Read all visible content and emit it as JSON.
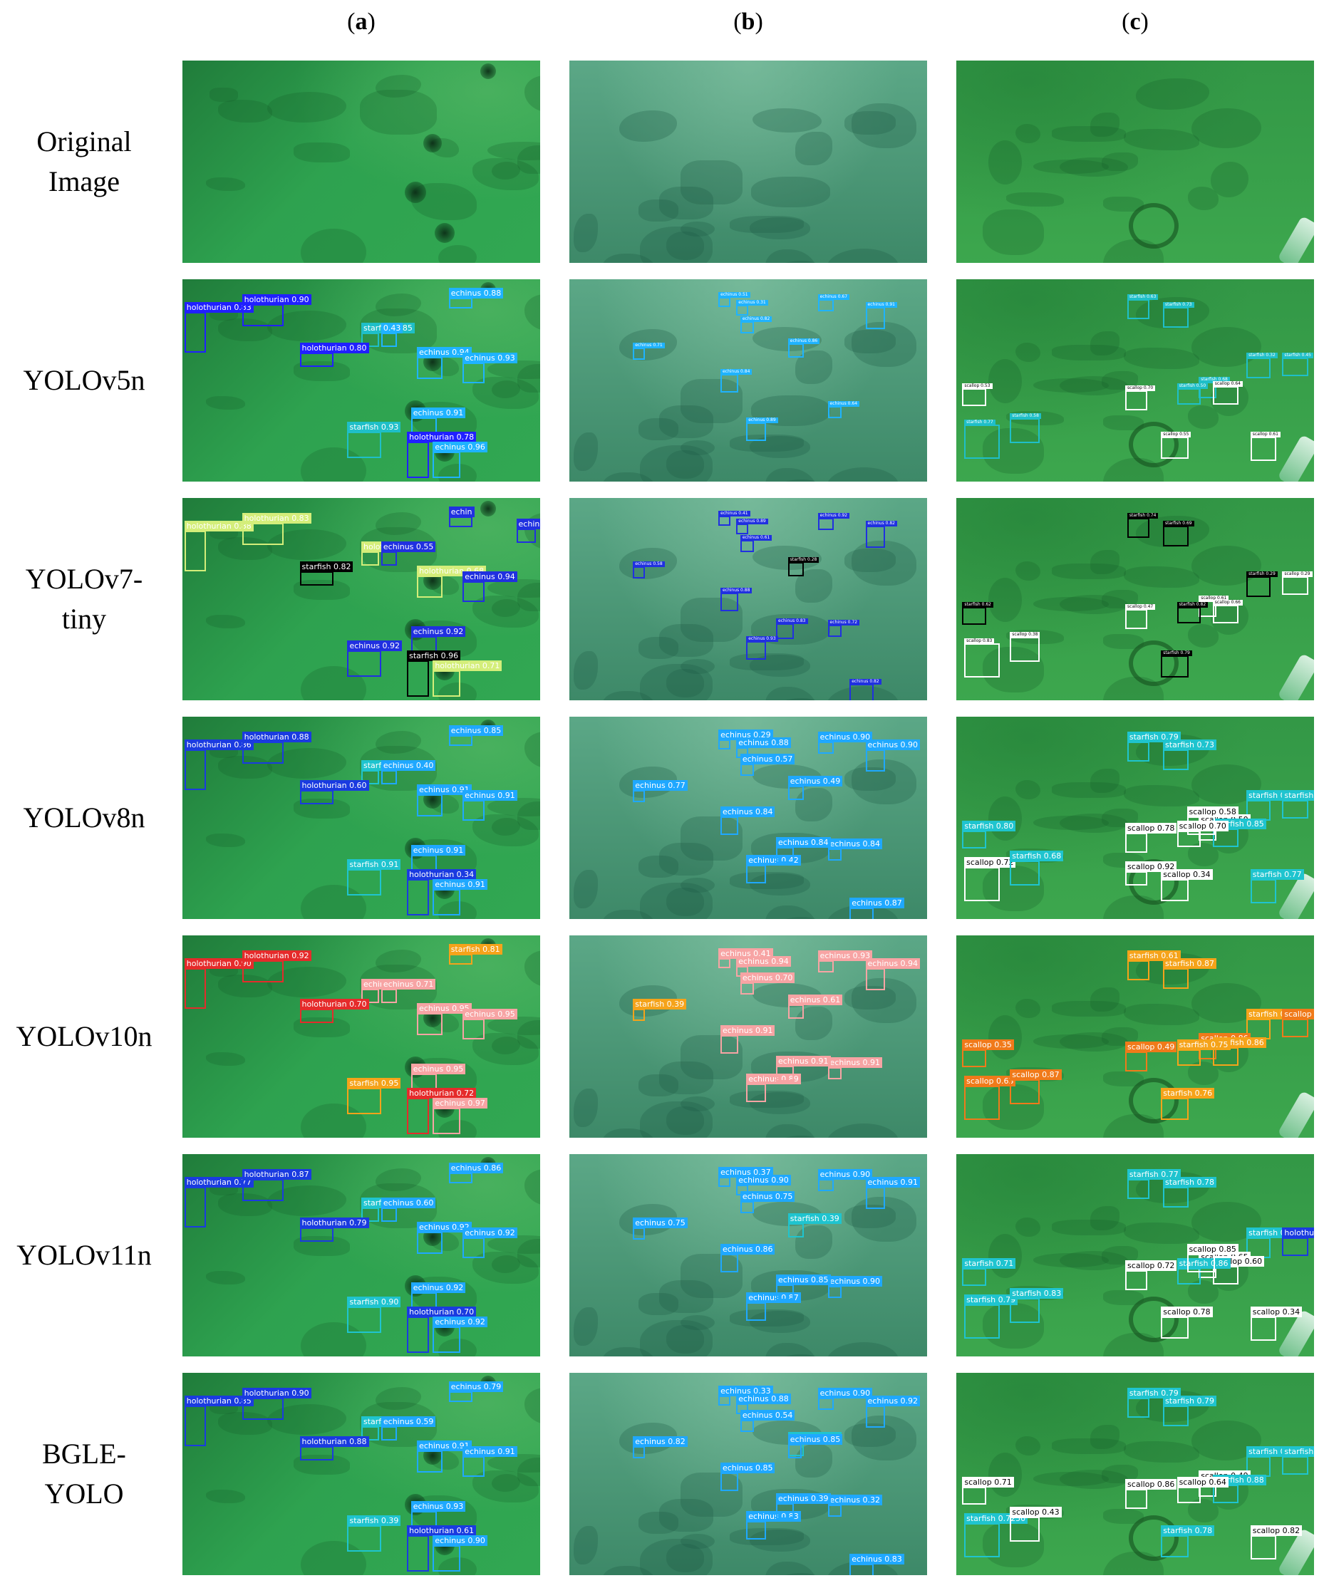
{
  "columns": [
    {
      "id": "a",
      "open": "(",
      "letter": "a",
      "close": ")"
    },
    {
      "id": "b",
      "open": "(",
      "letter": "b",
      "close": ")"
    },
    {
      "id": "c",
      "open": "(",
      "letter": "c",
      "close": ")"
    }
  ],
  "rows": [
    {
      "id": "original",
      "label": "Original\nImage"
    },
    {
      "id": "yolov5n",
      "label": "YOLOv5n"
    },
    {
      "id": "yolov7tiny",
      "label": "YOLOv7-\ntiny"
    },
    {
      "id": "yolov8n",
      "label": "YOLOv8n"
    },
    {
      "id": "yolov10n",
      "label": "YOLOv10n"
    },
    {
      "id": "yolov11n",
      "label": "YOLOv11n"
    },
    {
      "id": "bgle",
      "label": "BGLE-\nYOLO"
    }
  ],
  "palette": {
    "sceneA": "#2fa651",
    "sceneB": "#4f9f7c",
    "sceneC": "#3aa64d",
    "v5": {
      "holothurian": "#2020ff",
      "starfish": "#1fbfc8",
      "echinus": "#1fb3ff",
      "scallop": "#ffffff"
    },
    "v7": {
      "holothurian": "#d4ee7a",
      "starfish": "#000000",
      "echinus": "#2030e0",
      "scallop": "#ffffff"
    },
    "v8": {
      "holothurian": "#1a3be0",
      "starfish": "#1fc4cf",
      "echinus": "#1fa8ff",
      "scallop": "#ffffff"
    },
    "v10": {
      "holothurian": "#e52b2b",
      "starfish": "#f5a31a",
      "echinus": "#f7a4a4",
      "scallop": "#f07a1a"
    },
    "v11": {
      "holothurian": "#1a3be0",
      "starfish": "#1fc4cf",
      "echinus": "#1fa8ff",
      "scallop": "#ffffff"
    },
    "bgle": {
      "holothurian": "#1a3be0",
      "starfish": "#1fc4cf",
      "echinus": "#1fa8ff",
      "scallop": "#ffffff"
    }
  },
  "detections": {
    "yolov5n": {
      "a": [
        {
          "c": "holothurian",
          "t": "holothurian 0.83"
        },
        {
          "c": "holothurian",
          "t": "holothurian 0.90"
        },
        {
          "c": "starfish",
          "t": "starfish 0.85"
        },
        {
          "c": "echinus",
          "t": "0.43"
        },
        {
          "c": "echinus",
          "t": "echinus 0.88"
        },
        {
          "c": "holothurian",
          "t": "holothurian 0.80"
        },
        {
          "c": "echinus",
          "t": "echinus 0.94"
        },
        {
          "c": "echinus",
          "t": "echinus 0.93"
        },
        {
          "c": "echinus",
          "t": "echinus 0.91"
        },
        {
          "c": "starfish",
          "t": "starfish 0.93"
        },
        {
          "c": "holothurian",
          "t": "holothurian 0.78"
        },
        {
          "c": "echinus",
          "t": "echinus 0.96"
        }
      ],
      "b": [
        {
          "c": "echinus",
          "t": "echinus 0.51"
        },
        {
          "c": "echinus",
          "t": "echinus 0.31"
        },
        {
          "c": "echinus",
          "t": "echinus 0.82"
        },
        {
          "c": "echinus",
          "t": "echinus 0.67"
        },
        {
          "c": "echinus",
          "t": "echinus 0.91"
        },
        {
          "c": "echinus",
          "t": "echinus 0.71"
        },
        {
          "c": "echinus",
          "t": "echinus 0.86"
        },
        {
          "c": "echinus",
          "t": "echinus 0.84"
        },
        {
          "c": "echinus",
          "t": "echinus 0.64"
        },
        {
          "c": "echinus",
          "t": "echinus 0.89"
        }
      ],
      "c": [
        {
          "c": "starfish",
          "t": "starfish 0.63"
        },
        {
          "c": "starfish",
          "t": "starfish 0.73"
        },
        {
          "c": "starfish",
          "t": "starfish 0.32"
        },
        {
          "c": "starfish",
          "t": "starfish 0.45"
        },
        {
          "c": "scallop",
          "t": "scallop 0.53"
        },
        {
          "c": "starfish",
          "t": "starfish 0.68"
        },
        {
          "c": "scallop",
          "t": "scallop 0.64"
        },
        {
          "c": "scallop",
          "t": "scallop 0.70"
        },
        {
          "c": "starfish",
          "t": "starfish 0.50"
        },
        {
          "c": "scallop",
          "t": "scallop 0.55"
        },
        {
          "c": "starfish",
          "t": "starfish 0.77"
        },
        {
          "c": "starfish",
          "t": "starfish 0.58"
        },
        {
          "c": "scallop",
          "t": "scallop 0.61"
        }
      ]
    },
    "yolov7tiny": {
      "a": [
        {
          "c": "holothurian",
          "t": "holothurian 0.88"
        },
        {
          "c": "holothurian",
          "t": "holothurian 0.83"
        },
        {
          "c": "holothurian",
          "t": "holothurian 0.62"
        },
        {
          "c": "echinus",
          "t": "echinus 0.55"
        },
        {
          "c": "echinus",
          "t": "echin"
        },
        {
          "c": "starfish",
          "t": "starfish 0.82"
        },
        {
          "c": "holothurian",
          "t": "holothurian 0.68"
        },
        {
          "c": "echinus",
          "t": "echinus 0.94"
        },
        {
          "c": "echinus",
          "t": "echinus 0.92"
        },
        {
          "c": "echinus",
          "t": "echinus 0.92"
        },
        {
          "c": "starfish",
          "t": "starfish 0.96"
        },
        {
          "c": "holothurian",
          "t": "holothurian 0.71"
        },
        {
          "c": "echinus",
          "t": "echinus 0.96"
        }
      ],
      "b": [
        {
          "c": "echinus",
          "t": "echinus 0.41"
        },
        {
          "c": "echinus",
          "t": "echinus 0.89"
        },
        {
          "c": "echinus",
          "t": "echinus 0.61"
        },
        {
          "c": "echinus",
          "t": "echinus 0.92"
        },
        {
          "c": "echinus",
          "t": "echinus 0.82"
        },
        {
          "c": "echinus",
          "t": "echinus 0.58"
        },
        {
          "c": "starfish",
          "t": "starfish 0.28"
        },
        {
          "c": "echinus",
          "t": "echinus 0.88"
        },
        {
          "c": "echinus",
          "t": "echinus 0.72"
        },
        {
          "c": "echinus",
          "t": "echinus 0.93"
        },
        {
          "c": "echinus",
          "t": "echinus 0.83"
        },
        {
          "c": "echinus",
          "t": "echinus 0.82"
        }
      ],
      "c": [
        {
          "c": "starfish",
          "t": "starfish 0.74"
        },
        {
          "c": "starfish",
          "t": "starfish 0.69"
        },
        {
          "c": "starfish",
          "t": "starfish 0.29"
        },
        {
          "c": "scallop",
          "t": "scallop 0.29"
        },
        {
          "c": "starfish",
          "t": "starfish 0.62"
        },
        {
          "c": "scallop",
          "t": "scallop 0.61"
        },
        {
          "c": "scallop",
          "t": "scallop 0.66"
        },
        {
          "c": "scallop",
          "t": "scallop 0.47"
        },
        {
          "c": "starfish",
          "t": "starfish 0.82"
        },
        {
          "c": "starfish",
          "t": "starfish 0.79"
        },
        {
          "c": "scallop",
          "t": "scallop 0.83"
        },
        {
          "c": "scallop",
          "t": "scallop 0.38"
        }
      ]
    },
    "yolov8n": {
      "a": [
        {
          "c": "holothurian",
          "t": "holothurian 0.86"
        },
        {
          "c": "holothurian",
          "t": "holothurian 0.88"
        },
        {
          "c": "starfish",
          "t": "starfish 0.85"
        },
        {
          "c": "echinus",
          "t": "echinus 0.40"
        },
        {
          "c": "echinus",
          "t": "echinus 0.85"
        },
        {
          "c": "holothurian",
          "t": "holothurian 0.60"
        },
        {
          "c": "echinus",
          "t": "echinus 0.91"
        },
        {
          "c": "echinus",
          "t": "echinus 0.91"
        },
        {
          "c": "echinus",
          "t": "echinus 0.91"
        },
        {
          "c": "starfish",
          "t": "starfish 0.91"
        },
        {
          "c": "holothurian",
          "t": "holothurian 0.34"
        },
        {
          "c": "echinus",
          "t": "echinus 0.91"
        }
      ],
      "b": [
        {
          "c": "echinus",
          "t": "echinus 0.29"
        },
        {
          "c": "echinus",
          "t": "echinus 0.88"
        },
        {
          "c": "echinus",
          "t": "echinus 0.57"
        },
        {
          "c": "echinus",
          "t": "echinus 0.90"
        },
        {
          "c": "echinus",
          "t": "echinus 0.90"
        },
        {
          "c": "echinus",
          "t": "echinus 0.77"
        },
        {
          "c": "echinus",
          "t": "echinus 0.49"
        },
        {
          "c": "echinus",
          "t": "echinus 0.84"
        },
        {
          "c": "echinus",
          "t": "echinus 0.84"
        },
        {
          "c": "echinus",
          "t": "echinus 0.42"
        },
        {
          "c": "echinus",
          "t": "echinus 0.84"
        },
        {
          "c": "echinus",
          "t": "echinus 0.87"
        }
      ],
      "c": [
        {
          "c": "starfish",
          "t": "starfish 0.79"
        },
        {
          "c": "starfish",
          "t": "starfish 0.73"
        },
        {
          "c": "starfish",
          "t": "starfish 0.29"
        },
        {
          "c": "starfish",
          "t": "starfish 0.59"
        },
        {
          "c": "starfish",
          "t": "starfish 0.80"
        },
        {
          "c": "scallop",
          "t": "scallop 0.50"
        },
        {
          "c": "starfish",
          "t": "starfish 0.85"
        },
        {
          "c": "scallop",
          "t": "scallop 0.78"
        },
        {
          "c": "scallop",
          "t": "scallop 0.70"
        },
        {
          "c": "scallop",
          "t": "scallop 0.34"
        },
        {
          "c": "scallop",
          "t": "scallop 0.72"
        },
        {
          "c": "starfish",
          "t": "starfish 0.68"
        },
        {
          "c": "starfish",
          "t": "starfish 0.77"
        },
        {
          "c": "scallop",
          "t": "scallop 0.58"
        },
        {
          "c": "scallop",
          "t": "scallop 0.92"
        }
      ]
    },
    "yolov10n": {
      "a": [
        {
          "c": "holothurian",
          "t": "holothurian 0.90"
        },
        {
          "c": "holothurian",
          "t": "holothurian 0.92"
        },
        {
          "c": "echinus",
          "t": "echinus 0.87"
        },
        {
          "c": "echinus",
          "t": "echinus 0.71"
        },
        {
          "c": "starfish",
          "t": "starfish 0.81"
        },
        {
          "c": "holothurian",
          "t": "holothurian 0.70"
        },
        {
          "c": "echinus",
          "t": "echinus 0.95"
        },
        {
          "c": "echinus",
          "t": "echinus 0.95"
        },
        {
          "c": "echinus",
          "t": "echinus 0.95"
        },
        {
          "c": "starfish",
          "t": "starfish 0.95"
        },
        {
          "c": "holothurian",
          "t": "holothurian 0.72"
        },
        {
          "c": "echinus",
          "t": "echinus 0.97"
        }
      ],
      "b": [
        {
          "c": "echinus",
          "t": "echinus 0.41"
        },
        {
          "c": "echinus",
          "t": "echinus 0.94"
        },
        {
          "c": "echinus",
          "t": "echinus 0.70"
        },
        {
          "c": "echinus",
          "t": "echinus 0.93"
        },
        {
          "c": "echinus",
          "t": "echinus 0.94"
        },
        {
          "c": "starfish",
          "t": "starfish 0.39"
        },
        {
          "c": "echinus",
          "t": "echinus 0.61"
        },
        {
          "c": "echinus",
          "t": "echinus 0.91"
        },
        {
          "c": "echinus",
          "t": "echinus 0.91"
        },
        {
          "c": "echinus",
          "t": "echinus 0.89"
        },
        {
          "c": "echinus",
          "t": "echinus 0.91"
        }
      ],
      "c": [
        {
          "c": "starfish",
          "t": "starfish 0.61"
        },
        {
          "c": "starfish",
          "t": "starfish 0.87"
        },
        {
          "c": "starfish",
          "t": "starfish 0.8"
        },
        {
          "c": "scallop",
          "t": "scallop 0.87"
        },
        {
          "c": "scallop",
          "t": "scallop 0.35"
        },
        {
          "c": "scallop",
          "t": "scallop 0.86"
        },
        {
          "c": "starfish",
          "t": "starfish 0.86"
        },
        {
          "c": "scallop",
          "t": "scallop 0.49"
        },
        {
          "c": "starfish",
          "t": "starfish 0.75"
        },
        {
          "c": "starfish",
          "t": "starfish 0.76"
        },
        {
          "c": "scallop",
          "t": "scallop 0.63"
        },
        {
          "c": "scallop",
          "t": "scallop 0.87"
        }
      ]
    },
    "yolov11n": {
      "a": [
        {
          "c": "holothurian",
          "t": "holothurian 0.77"
        },
        {
          "c": "holothurian",
          "t": "holothurian 0.87"
        },
        {
          "c": "starfish",
          "t": "starfish 0.77"
        },
        {
          "c": "echinus",
          "t": "echinus 0.60"
        },
        {
          "c": "echinus",
          "t": "echinus 0.86"
        },
        {
          "c": "holothurian",
          "t": "holothurian 0.79"
        },
        {
          "c": "echinus",
          "t": "echinus 0.92"
        },
        {
          "c": "echinus",
          "t": "echinus 0.92"
        },
        {
          "c": "echinus",
          "t": "echinus 0.92"
        },
        {
          "c": "starfish",
          "t": "starfish 0.90"
        },
        {
          "c": "holothurian",
          "t": "holothurian 0.70"
        },
        {
          "c": "echinus",
          "t": "echinus 0.92"
        }
      ],
      "b": [
        {
          "c": "echinus",
          "t": "echinus 0.37"
        },
        {
          "c": "echinus",
          "t": "echinus 0.90"
        },
        {
          "c": "echinus",
          "t": "echinus 0.75"
        },
        {
          "c": "echinus",
          "t": "echinus 0.90"
        },
        {
          "c": "echinus",
          "t": "echinus 0.91"
        },
        {
          "c": "echinus",
          "t": "echinus 0.75"
        },
        {
          "c": "starfish",
          "t": "starfish 0.39"
        },
        {
          "c": "echinus",
          "t": "echinus 0.86"
        },
        {
          "c": "echinus",
          "t": "echinus 0.90"
        },
        {
          "c": "echinus",
          "t": "echinus 0.87"
        },
        {
          "c": "echinus",
          "t": "echinus 0.85"
        }
      ],
      "c": [
        {
          "c": "starfish",
          "t": "starfish 0.77"
        },
        {
          "c": "starfish",
          "t": "starfish 0.78"
        },
        {
          "c": "starfish",
          "t": "starfish 0.34"
        },
        {
          "c": "holothurian",
          "t": "holothurian 0.37"
        },
        {
          "c": "starfish",
          "t": "starfish 0.71"
        },
        {
          "c": "scallop",
          "t": "scallop 0.65"
        },
        {
          "c": "scallop",
          "t": "scallop 0.60"
        },
        {
          "c": "scallop",
          "t": "scallop 0.72"
        },
        {
          "c": "starfish",
          "t": "starfish 0.86"
        },
        {
          "c": "scallop",
          "t": "scallop 0.78"
        },
        {
          "c": "starfish",
          "t": "starfish 0.79"
        },
        {
          "c": "starfish",
          "t": "starfish 0.83"
        },
        {
          "c": "scallop",
          "t": "scallop 0.34"
        },
        {
          "c": "scallop",
          "t": "scallop 0.85"
        }
      ]
    },
    "bgle": {
      "a": [
        {
          "c": "holothurian",
          "t": "holothurian 0.85"
        },
        {
          "c": "holothurian",
          "t": "holothurian 0.90"
        },
        {
          "c": "starfish",
          "t": "starfish 0.82"
        },
        {
          "c": "echinus",
          "t": "echinus 0.59"
        },
        {
          "c": "echinus",
          "t": "echinus 0.79"
        },
        {
          "c": "holothurian",
          "t": "holothurian 0.88"
        },
        {
          "c": "echinus",
          "t": "echinus 0.91"
        },
        {
          "c": "echinus",
          "t": "echinus 0.91"
        },
        {
          "c": "echinus",
          "t": "echinus 0.93"
        },
        {
          "c": "starfish",
          "t": "starfish 0.39"
        },
        {
          "c": "holothurian",
          "t": "holothurian 0.61"
        },
        {
          "c": "echinus",
          "t": "echinus 0.90"
        }
      ],
      "b": [
        {
          "c": "echinus",
          "t": "echinus 0.33"
        },
        {
          "c": "echinus",
          "t": "echinus 0.88"
        },
        {
          "c": "echinus",
          "t": "echinus 0.54"
        },
        {
          "c": "echinus",
          "t": "echinus 0.90"
        },
        {
          "c": "echinus",
          "t": "echinus 0.92"
        },
        {
          "c": "echinus",
          "t": "echinus 0.82"
        },
        {
          "c": "starfish",
          "t": "starfish 0.57"
        },
        {
          "c": "echinus",
          "t": "echinus 0.85"
        },
        {
          "c": "echinus",
          "t": "echinus 0.32"
        },
        {
          "c": "echinus",
          "t": "echinus 0.83"
        },
        {
          "c": "echinus",
          "t": "echinus 0.39"
        },
        {
          "c": "echinus",
          "t": "echinus 0.83"
        },
        {
          "c": "echinus",
          "t": "echinus 0.85"
        }
      ],
      "c": [
        {
          "c": "starfish",
          "t": "starfish 0.79"
        },
        {
          "c": "starfish",
          "t": "starfish 0.79"
        },
        {
          "c": "starfish",
          "t": "starfish 0.55"
        },
        {
          "c": "starfish",
          "t": "starfish 0.85"
        },
        {
          "c": "scallop",
          "t": "scallop 0.71"
        },
        {
          "c": "scallop",
          "t": "scallop 0.49"
        },
        {
          "c": "starfish",
          "t": "starfish 0.88"
        },
        {
          "c": "scallop",
          "t": "scallop 0.86"
        },
        {
          "c": "scallop",
          "t": "scallop 0.64"
        },
        {
          "c": "starfish",
          "t": "starfish 0.78"
        },
        {
          "c": "starfish",
          "t": "starfish 0.7250"
        },
        {
          "c": "scallop",
          "t": "scallop 0.43"
        },
        {
          "c": "scallop",
          "t": "scallop 0.82"
        }
      ]
    }
  }
}
